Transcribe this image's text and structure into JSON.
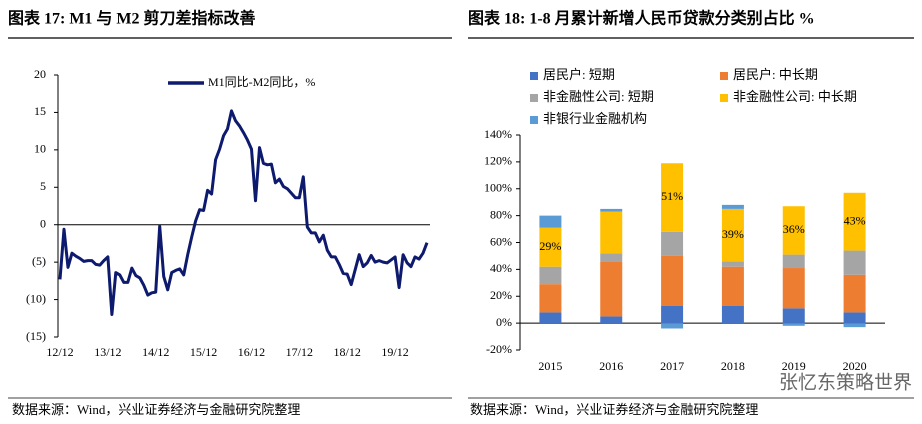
{
  "chart_data": [
    {
      "type": "line",
      "title": "图表 17: M1 与 M2 剪刀差指标改善",
      "source": "数据来源：Wind，兴业证券经济与金融研究院整理",
      "categories": [
        "12/12",
        null,
        null,
        null,
        null,
        null,
        null,
        null,
        null,
        null,
        null,
        null,
        "13/12",
        null,
        null,
        null,
        null,
        null,
        null,
        null,
        null,
        null,
        null,
        null,
        "14/12",
        null,
        null,
        null,
        null,
        null,
        null,
        null,
        null,
        null,
        null,
        null,
        "15/12",
        null,
        null,
        null,
        null,
        null,
        null,
        null,
        null,
        null,
        null,
        null,
        "16/12",
        null,
        null,
        null,
        null,
        null,
        null,
        null,
        null,
        null,
        null,
        null,
        "17/12",
        null,
        null,
        null,
        null,
        null,
        null,
        null,
        null,
        null,
        null,
        null,
        "18/12",
        null,
        null,
        null,
        null,
        null,
        null,
        null,
        null,
        null,
        null,
        null,
        "19/12",
        null,
        null,
        null,
        null,
        null,
        null,
        null,
        null
      ],
      "series": [
        {
          "name": "M1同比-M2同比，%",
          "color": "#0d1a6e",
          "values": [
            -7.3,
            -0.6,
            -5.7,
            -3.8,
            -4.2,
            -4.5,
            -4.9,
            -4.8,
            -4.8,
            -5.3,
            -5.4,
            -4.8,
            -4.3,
            -12.0,
            -6.4,
            -6.7,
            -7.7,
            -7.7,
            -5.8,
            -6.8,
            -7.1,
            -8.1,
            -9.4,
            -9.1,
            -9.0,
            -0.2,
            -6.9,
            -8.7,
            -6.4,
            -6.1,
            -5.9,
            -6.7,
            -4.0,
            -1.7,
            0.5,
            2.0,
            1.9,
            4.6,
            4.1,
            8.7,
            10.1,
            11.9,
            12.8,
            15.2,
            13.9,
            13.2,
            12.3,
            11.3,
            10.1,
            3.2,
            10.3,
            8.2,
            8.0,
            8.1,
            5.6,
            6.1,
            5.1,
            4.8,
            4.2,
            3.6,
            3.6,
            6.4,
            -0.3,
            -1.1,
            -1.1,
            -2.3,
            -1.4,
            -3.4,
            -4.3,
            -4.3,
            -5.3,
            -6.5,
            -6.6,
            -8.0,
            -6.0,
            -4.0,
            -5.6,
            -5.1,
            -4.1,
            -5.0,
            -4.8,
            -5.0,
            -5.1,
            -4.7,
            -4.3,
            -8.4,
            -4.0,
            -5.1,
            -5.6,
            -4.3,
            -4.6,
            -3.8,
            -2.4
          ]
        }
      ],
      "ylim": [
        -15,
        20
      ],
      "yticks": [
        {
          "value": -15,
          "label": "(15)"
        },
        {
          "value": -10,
          "label": "(10)"
        },
        {
          "value": -5,
          "label": "(5)"
        },
        0,
        5,
        10,
        15,
        20
      ],
      "grid": false
    },
    {
      "type": "bar",
      "title": "图表 18: 1-8 月累计新增人民币贷款分类别占比 %",
      "source": "数据来源：Wind，兴业证券经济与金融研究院整理",
      "stacked": true,
      "categories": [
        "2015",
        "2016",
        "2017",
        "2018",
        "2019",
        "2020"
      ],
      "series": [
        {
          "name": "居民户: 短期",
          "color": "#4472c4",
          "values": [
            8,
            5,
            13,
            13,
            11,
            8
          ]
        },
        {
          "name": "居民户: 中长期",
          "color": "#ed7d31",
          "values": [
            21,
            41,
            37,
            29,
            30,
            28
          ]
        },
        {
          "name": "非金融性公司: 短期",
          "color": "#a5a5a5",
          "values": [
            13,
            6,
            18,
            4,
            10,
            18
          ]
        },
        {
          "name": "非金融性公司: 中长期",
          "color": "#ffc000",
          "values": [
            29,
            31,
            51,
            39,
            36,
            43
          ],
          "value_labels": [
            "29%",
            null,
            "51%",
            "39%",
            "36%",
            "43%"
          ]
        },
        {
          "name": "非银行业金融机构",
          "color": "#5b9bd5",
          "values": [
            9,
            2,
            -4,
            3,
            -2,
            -3
          ]
        }
      ],
      "ylim": [
        -20,
        140
      ],
      "yticks": [
        {
          "value": -20,
          "label": "-20%"
        },
        {
          "value": 0,
          "label": "0%"
        },
        {
          "value": 20,
          "label": "20%"
        },
        {
          "value": 40,
          "label": "40%"
        },
        {
          "value": 60,
          "label": "60%"
        },
        {
          "value": 80,
          "label": "80%"
        },
        {
          "value": 100,
          "label": "100%"
        },
        {
          "value": 120,
          "label": "120%"
        },
        {
          "value": 140,
          "label": "140%"
        }
      ],
      "grid": false
    }
  ],
  "watermark": "张忆东策略世界"
}
